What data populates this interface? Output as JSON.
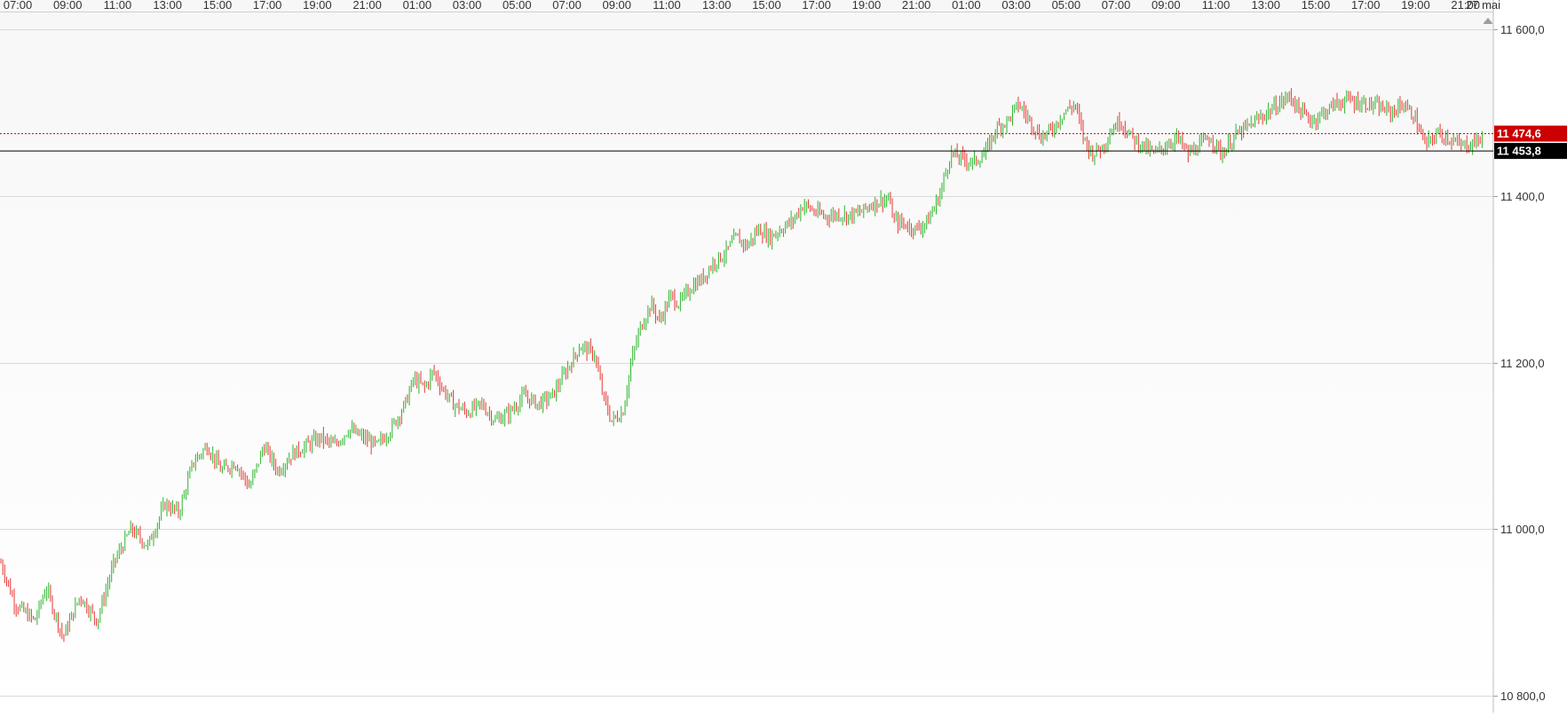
{
  "chart_data": {
    "type": "ohlc",
    "instrument_style": "bar",
    "time_labels": [
      "07:00",
      "09:00",
      "11:00",
      "13:00",
      "15:00",
      "17:00",
      "19:00",
      "21:00",
      "01:00",
      "03:00",
      "05:00",
      "07:00",
      "09:00",
      "11:00",
      "13:00",
      "15:00",
      "17:00",
      "19:00",
      "21:00",
      "01:00",
      "03:00",
      "05:00",
      "07:00",
      "09:00",
      "11:00",
      "13:00",
      "15:00",
      "17:00",
      "19:00",
      "21:00",
      "27 mai"
    ],
    "y_ticks": [
      {
        "value": 10800,
        "label": "10 800,0"
      },
      {
        "value": 11000,
        "label": "11 000,0"
      },
      {
        "value": 11200,
        "label": "11 200,0"
      },
      {
        "value": 11400,
        "label": "11 400,0"
      },
      {
        "value": 11600,
        "label": "11 600,0"
      }
    ],
    "ylim": [
      10780,
      11620
    ],
    "grid": true,
    "price_markers": [
      {
        "value": 11474.6,
        "label": "11 474,6",
        "color": "#cc0000",
        "line_style": "dotted"
      },
      {
        "value": 11453.8,
        "label": "11 453,8",
        "color": "#000000",
        "line_style": "solid"
      }
    ],
    "up_color": "#2db52d",
    "down_color": "#e53935",
    "price_path": [
      [
        0,
        10960
      ],
      [
        0.5,
        10910
      ],
      [
        1.2,
        10890
      ],
      [
        1.6,
        10930
      ],
      [
        2.2,
        10870
      ],
      [
        2.8,
        10920
      ],
      [
        3.4,
        10890
      ],
      [
        4.0,
        10960
      ],
      [
        4.6,
        11000
      ],
      [
        5.2,
        10980
      ],
      [
        5.8,
        11030
      ],
      [
        6.3,
        11020
      ],
      [
        6.8,
        11080
      ],
      [
        7.3,
        11100
      ],
      [
        7.8,
        11070
      ],
      [
        8.3,
        11080
      ],
      [
        8.8,
        11050
      ],
      [
        9.3,
        11100
      ],
      [
        9.8,
        11070
      ],
      [
        10.3,
        11090
      ],
      [
        10.8,
        11100
      ],
      [
        11.3,
        11110
      ],
      [
        11.8,
        11100
      ],
      [
        12.3,
        11120
      ],
      [
        12.8,
        11110
      ],
      [
        13.3,
        11100
      ],
      [
        13.8,
        11120
      ],
      [
        14.3,
        11150
      ],
      [
        14.6,
        11180
      ],
      [
        15.0,
        11170
      ],
      [
        15.3,
        11190
      ],
      [
        15.6,
        11170
      ],
      [
        16.0,
        11150
      ],
      [
        16.5,
        11140
      ],
      [
        17.0,
        11150
      ],
      [
        17.5,
        11130
      ],
      [
        18.0,
        11140
      ],
      [
        18.5,
        11160
      ],
      [
        19.0,
        11150
      ],
      [
        19.5,
        11160
      ],
      [
        20.0,
        11190
      ],
      [
        20.5,
        11220
      ],
      [
        21.0,
        11210
      ],
      [
        21.3,
        11160
      ],
      [
        21.6,
        11130
      ],
      [
        22.0,
        11140
      ],
      [
        22.3,
        11200
      ],
      [
        22.6,
        11240
      ],
      [
        23.0,
        11270
      ],
      [
        23.3,
        11250
      ],
      [
        23.7,
        11280
      ],
      [
        24.0,
        11270
      ],
      [
        24.4,
        11290
      ],
      [
        24.8,
        11300
      ],
      [
        25.2,
        11320
      ],
      [
        25.6,
        11330
      ],
      [
        26.0,
        11350
      ],
      [
        26.4,
        11340
      ],
      [
        26.8,
        11360
      ],
      [
        27.2,
        11350
      ],
      [
        27.6,
        11360
      ],
      [
        28.0,
        11370
      ],
      [
        28.4,
        11390
      ],
      [
        28.8,
        11380
      ],
      [
        29.2,
        11375
      ],
      [
        29.6,
        11378
      ],
      [
        30.0,
        11376
      ],
      [
        30.4,
        11380
      ],
      [
        30.8,
        11390
      ],
      [
        31.2,
        11395
      ],
      [
        31.4,
        11396
      ],
      [
        31.6,
        11370
      ],
      [
        32.0,
        11365
      ],
      [
        32.4,
        11360
      ],
      [
        32.8,
        11370
      ],
      [
        33.2,
        11400
      ],
      [
        33.6,
        11450
      ],
      [
        34.0,
        11445
      ],
      [
        34.4,
        11440
      ],
      [
        34.8,
        11450
      ],
      [
        35.2,
        11480
      ],
      [
        35.6,
        11490
      ],
      [
        36.0,
        11510
      ],
      [
        36.4,
        11490
      ],
      [
        36.8,
        11470
      ],
      [
        37.2,
        11480
      ],
      [
        37.6,
        11500
      ],
      [
        38.0,
        11510
      ],
      [
        38.3,
        11470
      ],
      [
        38.6,
        11450
      ],
      [
        39.0,
        11460
      ],
      [
        39.3,
        11480
      ],
      [
        39.6,
        11490
      ],
      [
        40.0,
        11470
      ],
      [
        40.4,
        11460
      ],
      [
        40.8,
        11450
      ],
      [
        41.2,
        11460
      ],
      [
        41.6,
        11470
      ],
      [
        42.0,
        11450
      ],
      [
        42.4,
        11460
      ],
      [
        42.8,
        11470
      ],
      [
        43.2,
        11450
      ],
      [
        43.6,
        11470
      ],
      [
        44.0,
        11480
      ],
      [
        44.4,
        11490
      ],
      [
        44.8,
        11500
      ],
      [
        45.2,
        11510
      ],
      [
        45.6,
        11520
      ],
      [
        46.0,
        11500
      ],
      [
        46.4,
        11490
      ],
      [
        46.8,
        11500
      ],
      [
        47.2,
        11510
      ],
      [
        47.6,
        11515
      ],
      [
        48.0,
        11512
      ],
      [
        48.4,
        11510
      ],
      [
        48.8,
        11505
      ],
      [
        49.2,
        11500
      ],
      [
        49.6,
        11510
      ],
      [
        50.0,
        11495
      ],
      [
        50.4,
        11460
      ],
      [
        50.8,
        11475
      ],
      [
        51.2,
        11470
      ],
      [
        51.6,
        11460
      ],
      [
        52.0,
        11462
      ],
      [
        52.4,
        11470
      ]
    ]
  }
}
